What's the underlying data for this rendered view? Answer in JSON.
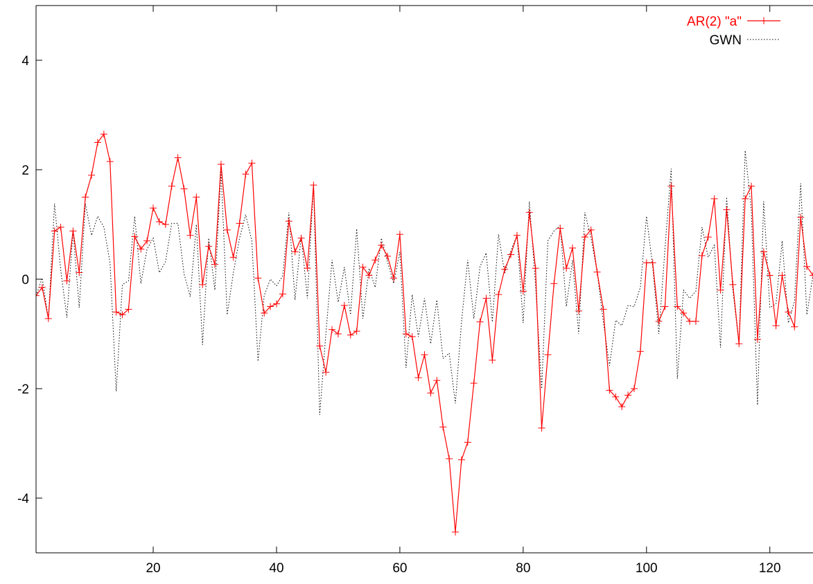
{
  "chart_data": {
    "type": "line",
    "title": "",
    "xlabel": "",
    "ylabel": "",
    "xlim": [
      1,
      127
    ],
    "ylim": [
      -5,
      5
    ],
    "xticks": [
      20,
      40,
      60,
      80,
      100,
      120
    ],
    "yticks": [
      -4,
      -2,
      0,
      2,
      4
    ],
    "x_tick_labels": [
      "20",
      "40",
      "60",
      "80",
      "100",
      "120"
    ],
    "y_tick_labels": [
      "-4",
      "-2",
      "0",
      "2",
      "4"
    ],
    "grid": false,
    "legend_position": "top-right",
    "colors": {
      "ar2": "#ff0000",
      "gwn": "#000000",
      "axis": "#000000",
      "background": "#ffffff"
    },
    "series": [
      {
        "name": "AR(2) \"a\"",
        "style": "solid line with plus markers",
        "x": [
          1,
          2,
          3,
          4,
          5,
          6,
          7,
          8,
          9,
          10,
          11,
          12,
          13,
          14,
          15,
          16,
          17,
          18,
          19,
          20,
          21,
          22,
          23,
          24,
          25,
          26,
          27,
          28,
          29,
          30,
          31,
          32,
          33,
          34,
          35,
          36,
          37,
          38,
          39,
          40,
          41,
          42,
          43,
          44,
          45,
          46,
          47,
          48,
          49,
          50,
          51,
          52,
          53,
          54,
          55,
          56,
          57,
          58,
          59,
          60,
          61,
          62,
          63,
          64,
          65,
          66,
          67,
          68,
          69,
          70,
          71,
          72,
          73,
          74,
          75,
          76,
          77,
          78,
          79,
          80,
          81,
          82,
          83,
          84,
          85,
          86,
          87,
          88,
          89,
          90,
          91,
          92,
          93,
          94,
          95,
          96,
          97,
          98,
          99,
          100,
          101,
          102,
          103,
          104,
          105,
          106,
          107,
          108,
          109,
          110,
          111,
          112,
          113,
          114,
          115,
          116,
          117,
          118,
          119,
          120,
          121,
          122,
          123,
          124,
          125,
          126,
          127
        ],
        "y": [
          -0.3,
          -0.15,
          -0.72,
          0.88,
          0.95,
          -0.03,
          0.88,
          0.12,
          1.5,
          1.9,
          2.5,
          2.65,
          2.15,
          -0.6,
          -0.65,
          -0.55,
          0.78,
          0.55,
          0.7,
          1.3,
          1.05,
          1.0,
          1.7,
          2.22,
          1.65,
          0.8,
          1.5,
          -0.1,
          0.6,
          0.27,
          2.1,
          0.9,
          0.4,
          1.02,
          1.92,
          2.12,
          0.02,
          -0.62,
          -0.5,
          -0.45,
          -0.27,
          1.06,
          0.5,
          0.75,
          0.2,
          1.72,
          -1.22,
          -1.7,
          -0.92,
          -1.0,
          -0.48,
          -1.02,
          -0.95,
          0.22,
          0.07,
          0.35,
          0.62,
          0.42,
          0.02,
          0.82,
          -1.0,
          -1.05,
          -1.8,
          -1.38,
          -2.08,
          -1.85,
          -2.7,
          -3.28,
          -4.62,
          -3.3,
          -2.98,
          -1.9,
          -0.78,
          -0.35,
          -1.48,
          -0.28,
          0.18,
          0.45,
          0.8,
          -0.22,
          1.22,
          0.2,
          -2.72,
          -1.38,
          -0.08,
          0.93,
          0.2,
          0.57,
          -0.58,
          0.77,
          0.9,
          0.13,
          -0.55,
          -2.03,
          -2.15,
          -2.33,
          -2.12,
          -2.0,
          -1.32,
          0.3,
          0.3,
          -0.77,
          -0.5,
          1.7,
          -0.5,
          -0.62,
          -0.77,
          -0.77,
          0.43,
          0.77,
          1.47,
          -0.2,
          1.27,
          -0.1,
          -1.18,
          1.47,
          1.7,
          -1.1,
          0.5,
          0.07,
          -0.85,
          0.07,
          -0.6,
          -0.87,
          1.13,
          0.23,
          0.07
        ]
      },
      {
        "name": "GWN",
        "style": "dotted line",
        "x": [
          1,
          2,
          3,
          4,
          5,
          6,
          7,
          8,
          9,
          10,
          11,
          12,
          13,
          14,
          15,
          16,
          17,
          18,
          19,
          20,
          21,
          22,
          23,
          24,
          25,
          26,
          27,
          28,
          29,
          30,
          31,
          32,
          33,
          34,
          35,
          36,
          37,
          38,
          39,
          40,
          41,
          42,
          43,
          44,
          45,
          46,
          47,
          48,
          49,
          50,
          51,
          52,
          53,
          54,
          55,
          56,
          57,
          58,
          59,
          60,
          61,
          62,
          63,
          64,
          65,
          66,
          67,
          68,
          69,
          70,
          71,
          72,
          73,
          74,
          75,
          76,
          77,
          78,
          79,
          80,
          81,
          82,
          83,
          84,
          85,
          86,
          87,
          88,
          89,
          90,
          91,
          92,
          93,
          94,
          95,
          96,
          97,
          98,
          99,
          100,
          101,
          102,
          103,
          104,
          105,
          106,
          107,
          108,
          109,
          110,
          111,
          112,
          113,
          114,
          115,
          116,
          117,
          118,
          119,
          120,
          121,
          122,
          123,
          124,
          125,
          126,
          127
        ],
        "y": [
          -0.3,
          0.02,
          -0.72,
          1.38,
          0.17,
          -0.7,
          0.88,
          -0.52,
          1.38,
          0.8,
          1.15,
          0.95,
          0.3,
          -2.05,
          -0.1,
          -0.03,
          1.15,
          -0.08,
          0.55,
          0.75,
          0.12,
          0.32,
          1.02,
          1.02,
          0.1,
          -0.32,
          1.0,
          -1.2,
          0.75,
          -0.2,
          1.98,
          -0.65,
          0.12,
          0.75,
          1.18,
          0.7,
          -1.5,
          -0.3,
          0.0,
          -0.12,
          0.06,
          1.22,
          -0.38,
          0.8,
          -0.35,
          1.72,
          -2.48,
          -1.0,
          0.35,
          -0.42,
          0.22,
          -0.65,
          0.92,
          -0.72,
          0.2,
          -0.15,
          0.75,
          0.32,
          -0.08,
          0.5,
          -1.62,
          -0.28,
          -1.05,
          -0.35,
          -1.18,
          -0.38,
          -1.45,
          -1.35,
          -2.27,
          -0.78,
          0.35,
          -0.72,
          0.23,
          0.48,
          -0.78,
          0.82,
          0.1,
          0.52,
          0.8,
          -0.8,
          1.42,
          -0.1,
          -2.0,
          0.7,
          0.88,
          0.98,
          -0.5,
          0.35,
          -1.0,
          1.22,
          0.75,
          0.13,
          -0.78,
          -1.58,
          -0.75,
          -0.85,
          -0.48,
          -0.5,
          -0.15,
          1.15,
          0.23,
          -1.0,
          0.57,
          2.02,
          -1.82,
          -0.2,
          -0.35,
          -0.22,
          0.95,
          0.4,
          0.62,
          -1.25,
          1.5,
          -0.2,
          -1.18,
          2.35,
          1.25,
          -2.3,
          1.42,
          -0.52,
          -0.45,
          0.7,
          -0.8,
          -0.4,
          1.75,
          -0.65,
          0.07
        ]
      }
    ]
  }
}
